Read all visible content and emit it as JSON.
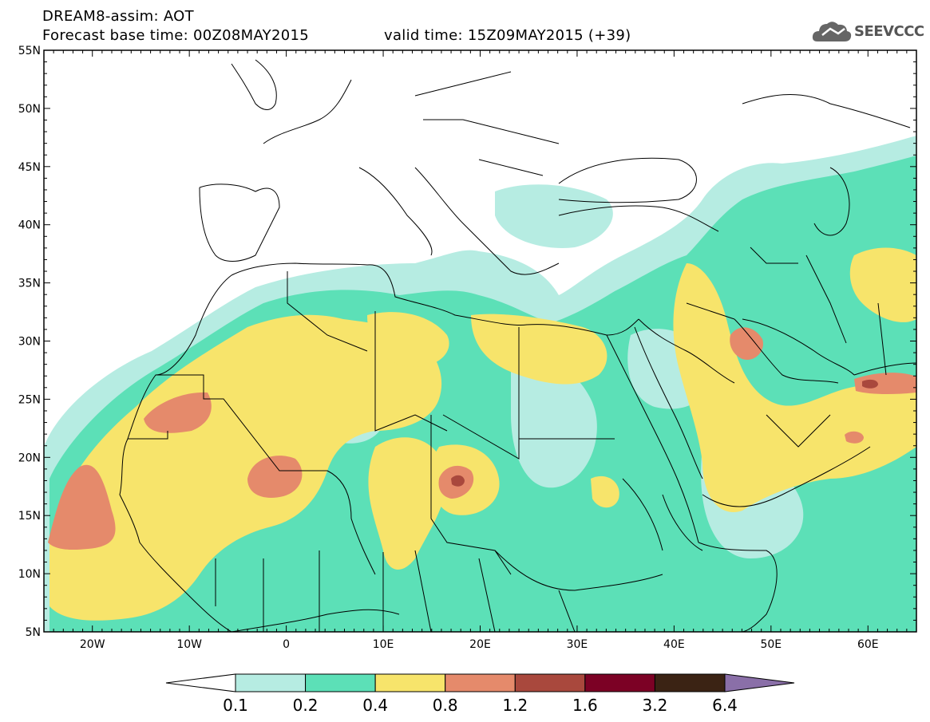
{
  "header": {
    "title_line1": "DREAM8-assim: AOT",
    "title_line2": "Forecast base time: 00Z08MAY2015",
    "valid_time": "valid time: 15Z09MAY2015 (+39)",
    "logo_text": "SEEVCCC",
    "logo_icon": "cloud-logo-icon"
  },
  "map": {
    "lon_range": [
      -25,
      65
    ],
    "lat_range": [
      5,
      55
    ],
    "lat_labels": [
      "55N",
      "50N",
      "45N",
      "40N",
      "35N",
      "30N",
      "25N",
      "20N",
      "15N",
      "10N",
      "5N"
    ],
    "lon_labels": [
      "20W",
      "10W",
      "0",
      "10E",
      "20E",
      "30E",
      "40E",
      "50E",
      "60E"
    ],
    "variable": "Aerosol optical thickness"
  },
  "colorbar": {
    "labels": [
      "0.1",
      "0.2",
      "0.4",
      "0.8",
      "1.2",
      "1.6",
      "3.2",
      "6.4"
    ],
    "colors": [
      "#ffffff",
      "#b6ece2",
      "#5ce0b7",
      "#f7e46b",
      "#e58a6b",
      "#a9483d",
      "#7c0125",
      "#3b2314",
      "#8a6fa8"
    ]
  },
  "colors": {
    "aot_01_02": "#b6ece2",
    "aot_02_04": "#5ce0b7",
    "aot_04_08": "#f7e46b",
    "aot_08_12": "#e58a6b",
    "aot_12_16": "#a9483d"
  }
}
